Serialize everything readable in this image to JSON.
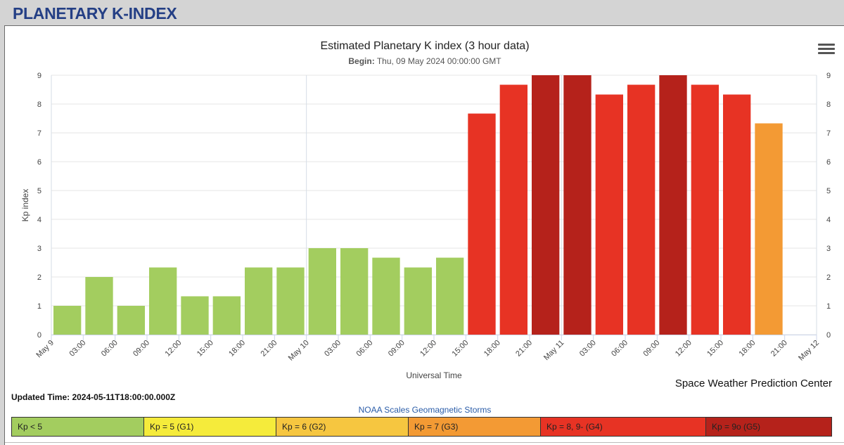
{
  "page": {
    "title": "PLANETARY K-INDEX"
  },
  "updated": "Updated Time: 2024-05-11T18:00:00.000Z",
  "credit": "Space Weather Prediction Center",
  "scale": {
    "title": "NOAA Scales Geomagnetic Storms",
    "items": [
      {
        "label": "Kp < 5",
        "color": "#a3cd5f"
      },
      {
        "label": "Kp = 5 (G1)",
        "color": "#f5eb3b"
      },
      {
        "label": "Kp = 6 (G2)",
        "color": "#f6c640"
      },
      {
        "label": "Kp = 7 (G3)",
        "color": "#f39a34"
      },
      {
        "label": "Kp = 8, 9- (G4)",
        "color": "#e73324"
      },
      {
        "label": "Kp = 9o (G5)",
        "color": "#b5221b"
      }
    ]
  },
  "chart_data": {
    "type": "bar",
    "title": "Estimated Planetary K index (3 hour data)",
    "subtitle_label": "Begin:",
    "subtitle_value": " Thu, 09 May 2024 00:00:00 GMT",
    "xlabel": "Universal Time",
    "ylabel": "Kp index",
    "ylim": [
      0,
      9
    ],
    "yticks": [
      0,
      1,
      2,
      3,
      4,
      5,
      6,
      7,
      8,
      9
    ],
    "xticks": [
      "May 9",
      "03:00",
      "06:00",
      "09:00",
      "12:00",
      "15:00",
      "18:00",
      "21:00",
      "May 10",
      "03:00",
      "06:00",
      "09:00",
      "12:00",
      "15:00",
      "18:00",
      "21:00",
      "May 11",
      "03:00",
      "06:00",
      "09:00",
      "12:00",
      "15:00",
      "18:00",
      "21:00",
      "May 12"
    ],
    "bars": [
      {
        "time": "2024-05-09 00:00",
        "kp": 1.0,
        "color": "#a3cd5f"
      },
      {
        "time": "2024-05-09 03:00",
        "kp": 2.0,
        "color": "#a3cd5f"
      },
      {
        "time": "2024-05-09 06:00",
        "kp": 1.0,
        "color": "#a3cd5f"
      },
      {
        "time": "2024-05-09 09:00",
        "kp": 2.33,
        "color": "#a3cd5f"
      },
      {
        "time": "2024-05-09 12:00",
        "kp": 1.33,
        "color": "#a3cd5f"
      },
      {
        "time": "2024-05-09 15:00",
        "kp": 1.33,
        "color": "#a3cd5f"
      },
      {
        "time": "2024-05-09 18:00",
        "kp": 2.33,
        "color": "#a3cd5f"
      },
      {
        "time": "2024-05-09 21:00",
        "kp": 2.33,
        "color": "#a3cd5f"
      },
      {
        "time": "2024-05-10 00:00",
        "kp": 3.0,
        "color": "#a3cd5f"
      },
      {
        "time": "2024-05-10 03:00",
        "kp": 3.0,
        "color": "#a3cd5f"
      },
      {
        "time": "2024-05-10 06:00",
        "kp": 2.67,
        "color": "#a3cd5f"
      },
      {
        "time": "2024-05-10 09:00",
        "kp": 2.33,
        "color": "#a3cd5f"
      },
      {
        "time": "2024-05-10 12:00",
        "kp": 2.67,
        "color": "#a3cd5f"
      },
      {
        "time": "2024-05-10 15:00",
        "kp": 7.67,
        "color": "#e73324"
      },
      {
        "time": "2024-05-10 18:00",
        "kp": 8.67,
        "color": "#e73324"
      },
      {
        "time": "2024-05-10 21:00",
        "kp": 9.0,
        "color": "#b5221b"
      },
      {
        "time": "2024-05-11 00:00",
        "kp": 9.0,
        "color": "#b5221b"
      },
      {
        "time": "2024-05-11 03:00",
        "kp": 8.33,
        "color": "#e73324"
      },
      {
        "time": "2024-05-11 06:00",
        "kp": 8.67,
        "color": "#e73324"
      },
      {
        "time": "2024-05-11 09:00",
        "kp": 9.0,
        "color": "#b5221b"
      },
      {
        "time": "2024-05-11 12:00",
        "kp": 8.67,
        "color": "#e73324"
      },
      {
        "time": "2024-05-11 15:00",
        "kp": 8.33,
        "color": "#e73324"
      },
      {
        "time": "2024-05-11 18:00",
        "kp": 7.33,
        "color": "#f39a34"
      }
    ]
  }
}
